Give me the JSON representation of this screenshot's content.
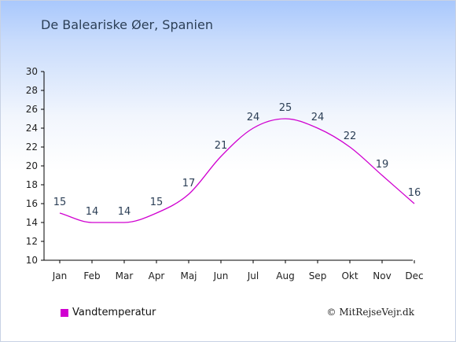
{
  "title": "De Baleariske Øer, Spanien",
  "legend_label": "Vandtemperatur",
  "credit": "© MitRejseVejr.dk",
  "colors": {
    "line": "#d000d0",
    "axis": "#000000",
    "legend_swatch": "#d000d0"
  },
  "chart_data": {
    "type": "line",
    "categories": [
      "Jan",
      "Feb",
      "Mar",
      "Apr",
      "Maj",
      "Jun",
      "Jul",
      "Aug",
      "Sep",
      "Okt",
      "Nov",
      "Dec"
    ],
    "series": [
      {
        "name": "Vandtemperatur",
        "values": [
          15,
          14,
          14,
          15,
          17,
          21,
          24,
          25,
          24,
          22,
          19,
          16
        ]
      }
    ],
    "ylim": [
      10,
      30
    ],
    "yticks": [
      10,
      12,
      14,
      16,
      18,
      20,
      22,
      24,
      26,
      28,
      30
    ],
    "grid": false,
    "legend": "bottom-left",
    "smooth": true
  }
}
